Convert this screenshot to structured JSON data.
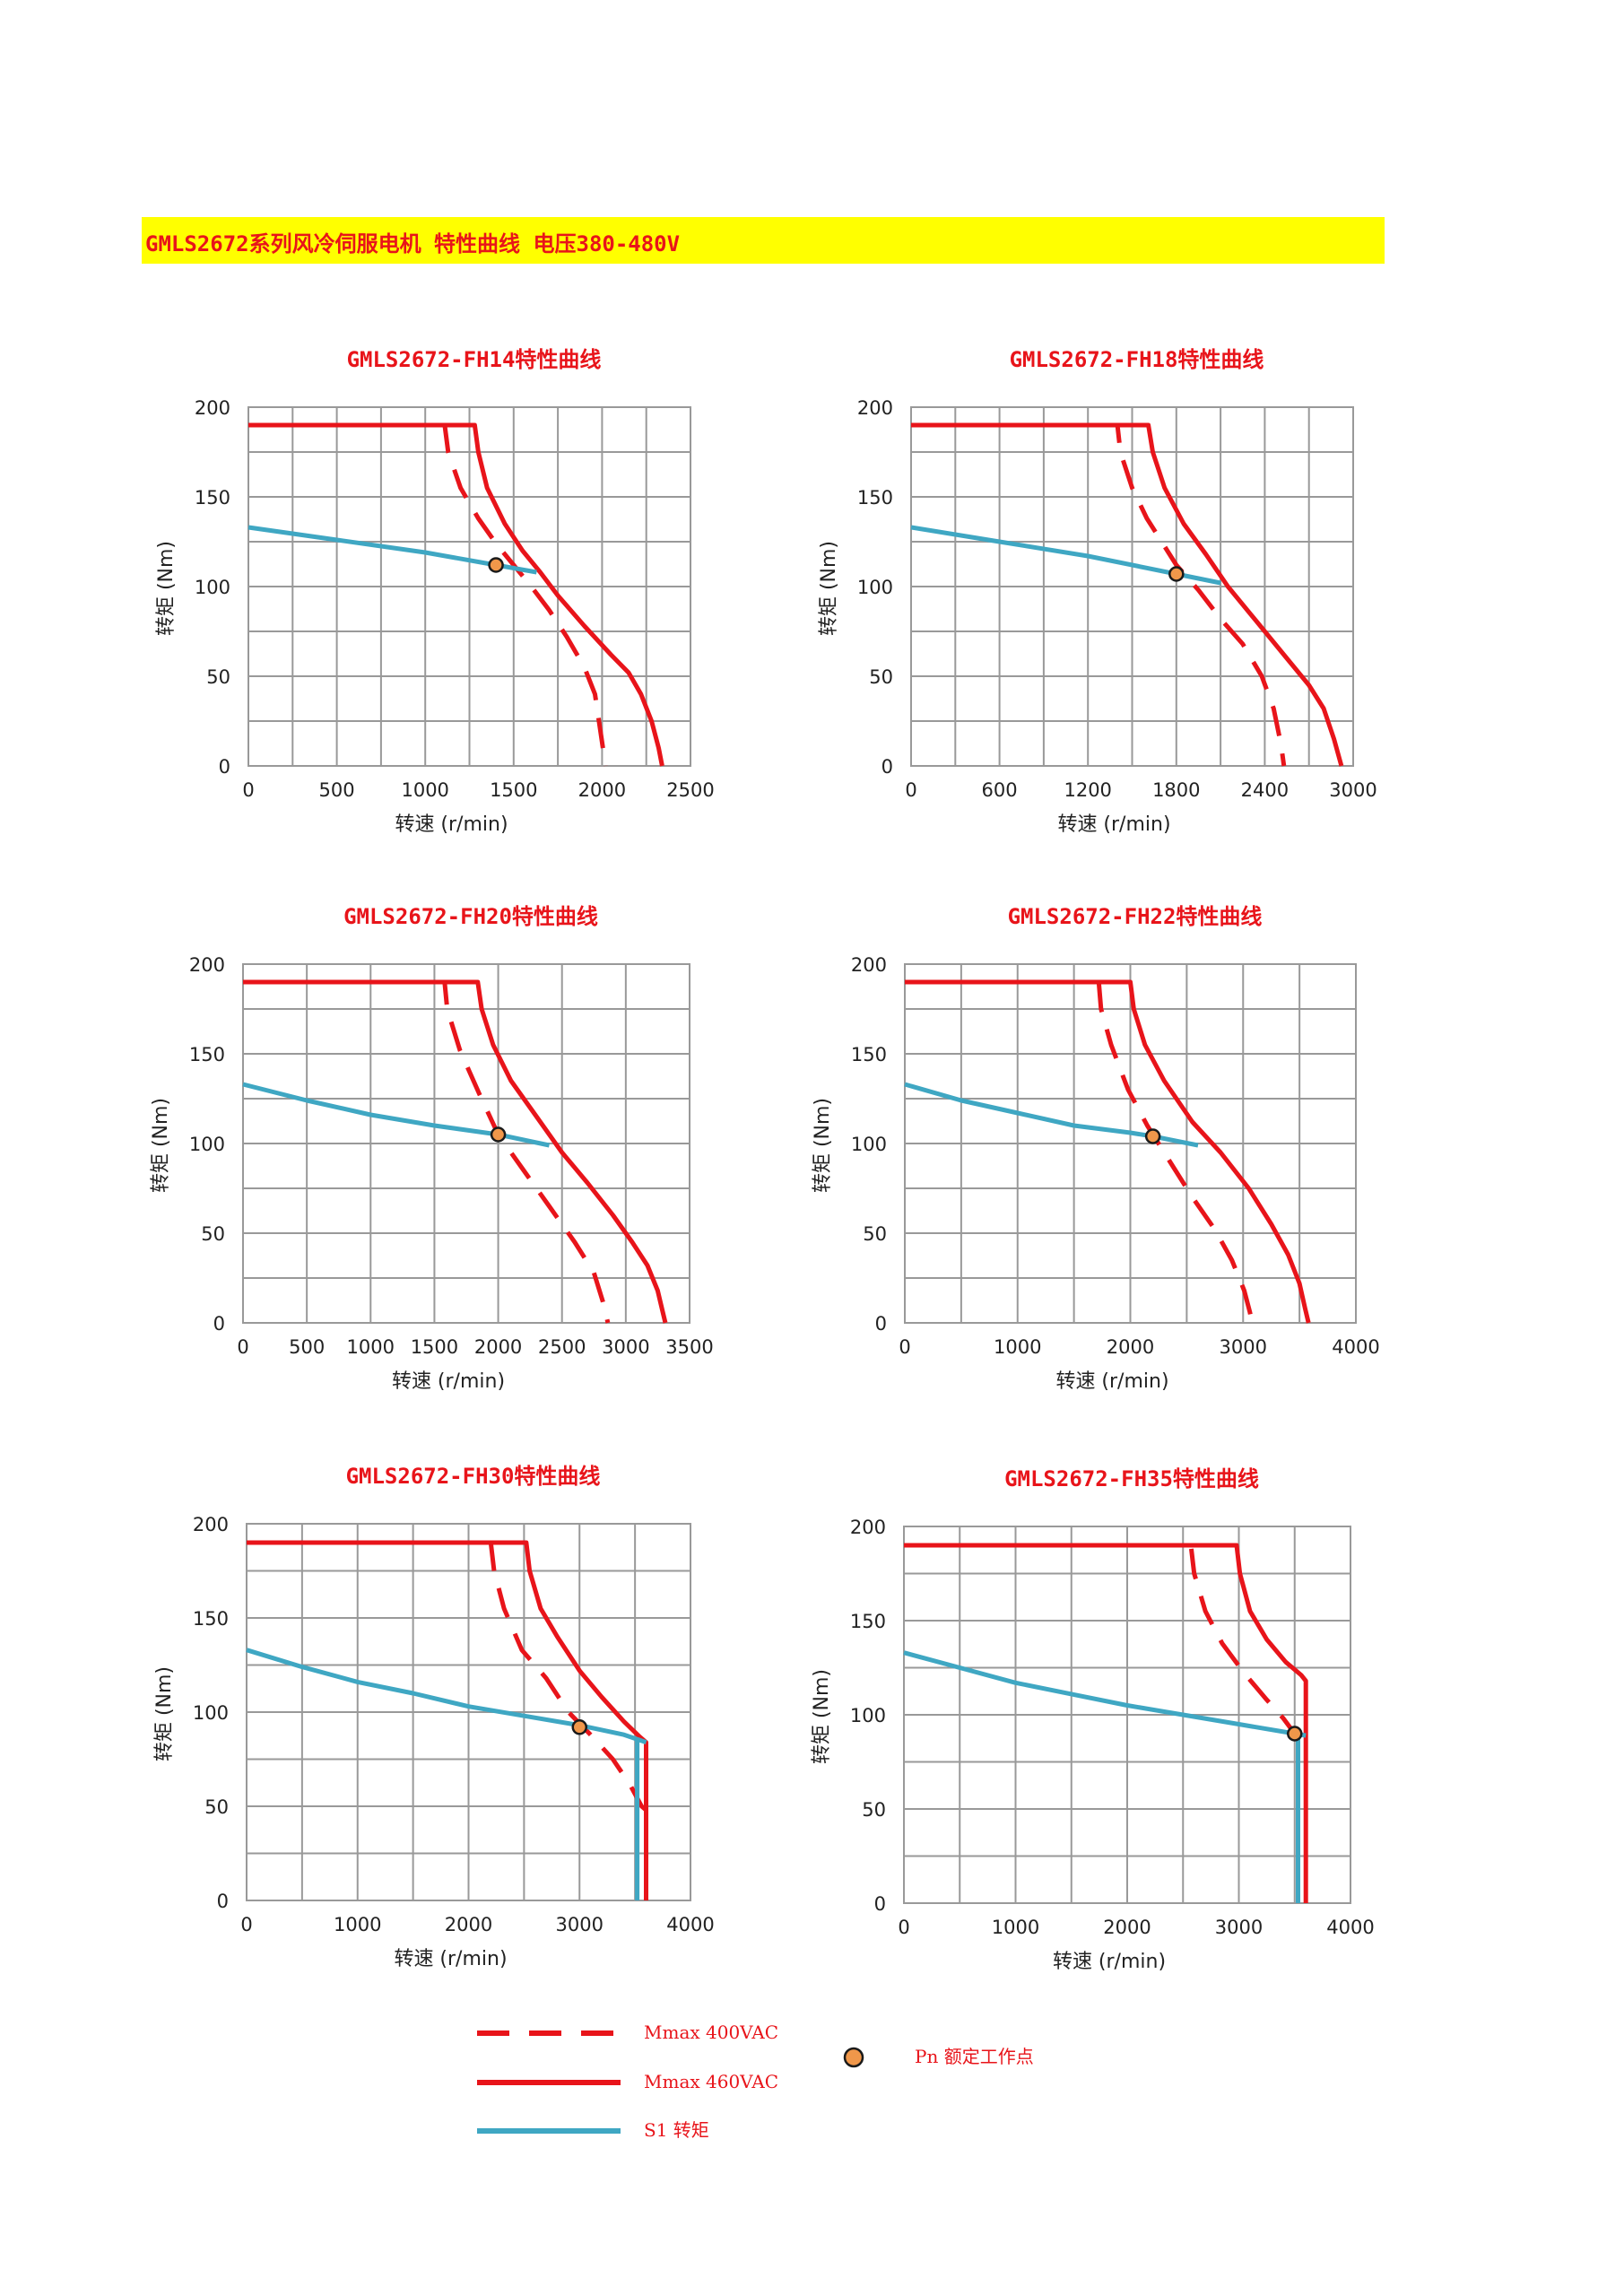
{
  "header": {
    "title": "GMLS2672系列风冷伺服电机 特性曲线 电压380-480V"
  },
  "colors": {
    "banner": "#ffff00",
    "accent": "#e8141a",
    "mmax": "#e8141a",
    "s1": "#3fa7c3",
    "pn_marker": "#f0974a"
  },
  "chart_data": [
    {
      "type": "line",
      "title": "GMLS2672-FH14特性曲线",
      "xlabel": "转速 (r/min)",
      "ylabel": "转矩 (Nm)",
      "xlim": [
        0,
        2500
      ],
      "ylim": [
        0,
        200
      ],
      "xticks": [
        0,
        500,
        1000,
        1500,
        2000,
        2500
      ],
      "yticks": [
        0,
        50,
        100,
        150,
        200
      ],
      "xgrid": [
        0,
        250,
        500,
        750,
        1000,
        1250,
        1500,
        1750,
        2000,
        2250,
        2500
      ],
      "ygrid": [
        0,
        25,
        50,
        75,
        100,
        125,
        150,
        175,
        200
      ],
      "grid": true,
      "series": [
        {
          "name": "Mmax 400VAC",
          "style": "dashed",
          "color": "#e8141a",
          "x": [
            0,
            1110,
            1130,
            1200,
            1300,
            1400,
            1500,
            1600,
            1700,
            1800,
            1900,
            1960,
            1990,
            2020
          ],
          "y": [
            190,
            190,
            175,
            155,
            138,
            124,
            112,
            100,
            87,
            72,
            55,
            40,
            20,
            0
          ]
        },
        {
          "name": "Mmax 460VAC",
          "style": "solid",
          "color": "#e8141a",
          "x": [
            0,
            1280,
            1300,
            1350,
            1450,
            1550,
            1650,
            1750,
            1900,
            2050,
            2150,
            2220,
            2280,
            2320,
            2340
          ],
          "y": [
            190,
            190,
            175,
            155,
            135,
            120,
            108,
            95,
            78,
            62,
            52,
            40,
            25,
            10,
            0
          ]
        },
        {
          "name": "S1 转矩",
          "style": "solid",
          "color": "#3fa7c3",
          "x": [
            0,
            500,
            1000,
            1400,
            1630
          ],
          "y": [
            133,
            126,
            119,
            112,
            108
          ]
        }
      ],
      "points": [
        {
          "name": "Pn",
          "x": 1400,
          "y": 112
        }
      ]
    },
    {
      "type": "line",
      "title": "GMLS2672-FH18特性曲线",
      "xlabel": "转速 (r/min)",
      "ylabel": "转矩 (Nm)",
      "xlim": [
        0,
        3000
      ],
      "ylim": [
        0,
        200
      ],
      "xticks": [
        0,
        600,
        1200,
        1800,
        2400,
        3000
      ],
      "yticks": [
        0,
        50,
        100,
        150,
        200
      ],
      "xgrid": [
        0,
        300,
        600,
        900,
        1200,
        1500,
        1800,
        2100,
        2400,
        2700,
        3000
      ],
      "ygrid": [
        0,
        25,
        50,
        75,
        100,
        125,
        150,
        175,
        200
      ],
      "grid": true,
      "series": [
        {
          "name": "Mmax 400VAC",
          "style": "dashed",
          "color": "#e8141a",
          "x": [
            0,
            1400,
            1420,
            1500,
            1600,
            1700,
            1800,
            1950,
            2100,
            2250,
            2380,
            2460,
            2510,
            2530
          ],
          "y": [
            190,
            190,
            175,
            155,
            138,
            125,
            112,
            98,
            82,
            68,
            50,
            32,
            12,
            0
          ]
        },
        {
          "name": "Mmax 460VAC",
          "style": "solid",
          "color": "#e8141a",
          "x": [
            0,
            1610,
            1640,
            1720,
            1850,
            2000,
            2150,
            2350,
            2550,
            2700,
            2800,
            2870,
            2920
          ],
          "y": [
            190,
            190,
            175,
            155,
            135,
            118,
            100,
            80,
            60,
            45,
            32,
            15,
            0
          ]
        },
        {
          "name": "S1 转矩",
          "style": "solid",
          "color": "#3fa7c3",
          "x": [
            0,
            600,
            1200,
            1800,
            2100
          ],
          "y": [
            133,
            125,
            117,
            107,
            102
          ]
        }
      ],
      "points": [
        {
          "name": "Pn",
          "x": 1800,
          "y": 107
        }
      ]
    },
    {
      "type": "line",
      "title": "GMLS2672-FH20特性曲线",
      "xlabel": "转速 (r/min)",
      "ylabel": "转矩 (Nm)",
      "xlim": [
        0,
        3500
      ],
      "ylim": [
        0,
        200
      ],
      "xticks": [
        0,
        500,
        1000,
        1500,
        2000,
        2500,
        3000,
        3500
      ],
      "yticks": [
        0,
        50,
        100,
        150,
        200
      ],
      "xgrid": [
        0,
        500,
        1000,
        1500,
        2000,
        2500,
        3000,
        3500
      ],
      "ygrid": [
        0,
        25,
        50,
        75,
        100,
        125,
        150,
        175,
        200
      ],
      "grid": true,
      "series": [
        {
          "name": "Mmax 400VAC",
          "style": "dashed",
          "color": "#e8141a",
          "x": [
            0,
            1580,
            1600,
            1700,
            1850,
            2000,
            2200,
            2400,
            2600,
            2750,
            2820,
            2860
          ],
          "y": [
            190,
            190,
            175,
            152,
            128,
            105,
            85,
            65,
            45,
            28,
            12,
            0
          ]
        },
        {
          "name": "Mmax 460VAC",
          "style": "solid",
          "color": "#e8141a",
          "x": [
            0,
            1840,
            1870,
            1960,
            2100,
            2300,
            2500,
            2700,
            2900,
            3050,
            3170,
            3250,
            3290,
            3310
          ],
          "y": [
            190,
            190,
            175,
            155,
            135,
            115,
            95,
            78,
            60,
            45,
            32,
            18,
            6,
            0
          ]
        },
        {
          "name": "S1 转矩",
          "style": "solid",
          "color": "#3fa7c3",
          "x": [
            0,
            500,
            1000,
            1500,
            2000,
            2400
          ],
          "y": [
            133,
            124,
            116,
            110,
            105,
            99
          ]
        }
      ],
      "points": [
        {
          "name": "Pn",
          "x": 2000,
          "y": 105
        }
      ]
    },
    {
      "type": "line",
      "title": "GMLS2672-FH22特性曲线",
      "xlabel": "转速 (r/min)",
      "ylabel": "转矩 (Nm)",
      "xlim": [
        0,
        4000
      ],
      "ylim": [
        0,
        200
      ],
      "xticks": [
        0,
        1000,
        2000,
        3000,
        4000
      ],
      "yticks": [
        0,
        50,
        100,
        150,
        200
      ],
      "xgrid": [
        0,
        500,
        1000,
        1500,
        2000,
        2500,
        3000,
        3500,
        4000
      ],
      "ygrid": [
        0,
        25,
        50,
        75,
        100,
        125,
        150,
        175,
        200
      ],
      "grid": true,
      "series": [
        {
          "name": "Mmax 400VAC",
          "style": "dashed",
          "color": "#e8141a",
          "x": [
            0,
            1720,
            1740,
            1830,
            1980,
            2150,
            2350,
            2550,
            2750,
            2900,
            3010,
            3060,
            3080
          ],
          "y": [
            190,
            190,
            175,
            155,
            130,
            110,
            90,
            70,
            52,
            35,
            18,
            6,
            0
          ]
        },
        {
          "name": "Mmax 460VAC",
          "style": "solid",
          "color": "#e8141a",
          "x": [
            0,
            2000,
            2030,
            2130,
            2300,
            2550,
            2800,
            3050,
            3250,
            3400,
            3500,
            3550,
            3580
          ],
          "y": [
            190,
            190,
            175,
            155,
            135,
            112,
            95,
            75,
            55,
            38,
            22,
            8,
            0
          ]
        },
        {
          "name": "S1 转矩",
          "style": "solid",
          "color": "#3fa7c3",
          "x": [
            0,
            500,
            1000,
            1500,
            2000,
            2200,
            2600
          ],
          "y": [
            133,
            124,
            117,
            110,
            106,
            104,
            99
          ]
        }
      ],
      "points": [
        {
          "name": "Pn",
          "x": 2200,
          "y": 104
        }
      ]
    },
    {
      "type": "line",
      "title": "GMLS2672-FH30特性曲线",
      "xlabel": "转速 (r/min)",
      "ylabel": "转矩 (Nm)",
      "xlim": [
        0,
        4000
      ],
      "ylim": [
        0,
        200
      ],
      "xticks": [
        0,
        1000,
        2000,
        3000,
        4000
      ],
      "yticks": [
        0,
        50,
        100,
        150,
        200
      ],
      "xgrid": [
        0,
        500,
        1000,
        1500,
        2000,
        2500,
        3000,
        3500,
        4000
      ],
      "ygrid": [
        0,
        25,
        50,
        75,
        100,
        125,
        150,
        175,
        200
      ],
      "grid": true,
      "series": [
        {
          "name": "Mmax 400VAC",
          "style": "dashed",
          "color": "#e8141a",
          "x": [
            0,
            2200,
            2230,
            2320,
            2480,
            2700,
            2900,
            3100,
            3300,
            3450,
            3560,
            3600,
            3600
          ],
          "y": [
            190,
            190,
            175,
            155,
            133,
            118,
            100,
            88,
            75,
            62,
            50,
            48,
            0
          ]
        },
        {
          "name": "Mmax 460VAC",
          "style": "solid",
          "color": "#e8141a",
          "x": [
            0,
            2520,
            2550,
            2650,
            2800,
            3000,
            3200,
            3400,
            3540,
            3600,
            3600
          ],
          "y": [
            190,
            190,
            175,
            155,
            140,
            122,
            108,
            95,
            87,
            84,
            0
          ]
        },
        {
          "name": "S1 转矩",
          "style": "solid",
          "color": "#3fa7c3",
          "x": [
            0,
            500,
            1000,
            1500,
            2000,
            2500,
            3000,
            3400,
            3600
          ],
          "y": [
            133,
            124,
            116,
            110,
            103,
            98,
            93,
            88,
            84
          ]
        },
        {
          "name": "S1 转矩 limit",
          "style": "solid",
          "color": "#3fa7c3",
          "x": [
            3520,
            3520
          ],
          "y": [
            86,
            0
          ]
        }
      ],
      "points": [
        {
          "name": "Pn",
          "x": 3000,
          "y": 92
        }
      ]
    },
    {
      "type": "line",
      "title": "GMLS2672-FH35特性曲线",
      "xlabel": "转速 (r/min)",
      "ylabel": "转矩 (Nm)",
      "xlim": [
        0,
        4000
      ],
      "ylim": [
        0,
        200
      ],
      "xticks": [
        0,
        1000,
        2000,
        3000,
        4000
      ],
      "yticks": [
        0,
        50,
        100,
        150,
        200
      ],
      "xgrid": [
        0,
        500,
        1000,
        1500,
        2000,
        2500,
        3000,
        3500,
        4000
      ],
      "ygrid": [
        0,
        25,
        50,
        75,
        100,
        125,
        150,
        175,
        200
      ],
      "grid": true,
      "series": [
        {
          "name": "Mmax 400VAC",
          "style": "dashed",
          "color": "#e8141a",
          "x": [
            0,
            2570,
            2600,
            2700,
            2850,
            3050,
            3250,
            3400,
            3500
          ],
          "y": [
            190,
            190,
            175,
            155,
            138,
            122,
            108,
            98,
            90
          ]
        },
        {
          "name": "Mmax 460VAC",
          "style": "solid",
          "color": "#e8141a",
          "x": [
            0,
            2980,
            3010,
            3100,
            3250,
            3420,
            3560,
            3600,
            3600
          ],
          "y": [
            190,
            190,
            175,
            155,
            140,
            128,
            121,
            118,
            0
          ]
        },
        {
          "name": "S1 转矩",
          "style": "solid",
          "color": "#3fa7c3",
          "x": [
            0,
            500,
            1000,
            1500,
            2000,
            2500,
            3000,
            3500,
            3600
          ],
          "y": [
            133,
            125,
            117,
            111,
            105,
            100,
            95,
            90,
            89
          ]
        },
        {
          "name": "S1 转矩 limit",
          "style": "solid",
          "color": "#3fa7c3",
          "x": [
            3530,
            3530
          ],
          "y": [
            90,
            0
          ]
        }
      ],
      "points": [
        {
          "name": "Pn",
          "x": 3500,
          "y": 90
        }
      ]
    }
  ],
  "legend": {
    "mmax_400": "Mmax 400VAC",
    "mmax_460": "Mmax 460VAC",
    "s1": "S1 转矩",
    "pn": "Pn 额定工作点"
  }
}
